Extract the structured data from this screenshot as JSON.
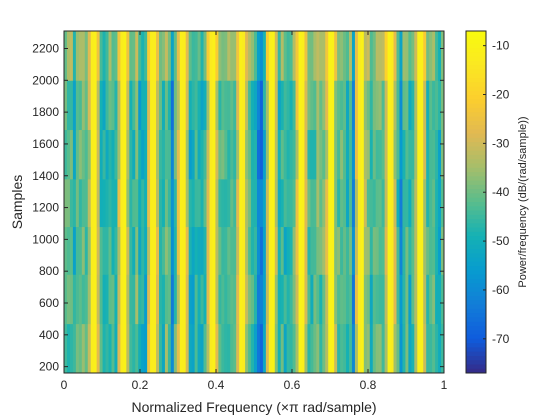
{
  "chart_data": {
    "type": "heatmap",
    "title": "",
    "xlabel": "Normalized Frequency  (×π rad/sample)",
    "ylabel": "Samples",
    "xlim": [
      0,
      1
    ],
    "ylim": [
      160,
      2310
    ],
    "xticks": [
      0,
      0.2,
      0.4,
      0.6,
      0.8,
      1
    ],
    "xtick_labels": [
      "0",
      "0.2",
      "0.4",
      "0.6",
      "0.8",
      "1"
    ],
    "yticks": [
      200,
      400,
      600,
      800,
      1000,
      1200,
      1400,
      1600,
      1800,
      2000,
      2200
    ],
    "ytick_labels": [
      "200",
      "400",
      "600",
      "800",
      "1000",
      "1200",
      "1400",
      "1600",
      "1800",
      "2000",
      "2200"
    ],
    "colorbar": {
      "label": "Power/frequency (dB/(rad/sample))",
      "range": [
        -77,
        -7
      ],
      "ticks": [
        -10,
        -20,
        -30,
        -40,
        -50,
        -60,
        -70
      ],
      "tick_labels": [
        "-10",
        "-20",
        "-30",
        "-40",
        "-50",
        "-60",
        "-70"
      ],
      "colormap": "parula"
    },
    "time_segment_boundaries": [
      160,
      470,
      780,
      1080,
      1380,
      1690,
      2000,
      2310
    ],
    "frequency_columns": 128,
    "bright_peak_frequencies": [
      0.078,
      0.156,
      0.234,
      0.312,
      0.39,
      0.468,
      0.547,
      0.625,
      0.703,
      0.781,
      0.859,
      0.937
    ],
    "peak_level_db": -10,
    "background_level_db": -45,
    "low_level_db": -65,
    "grid": false
  }
}
